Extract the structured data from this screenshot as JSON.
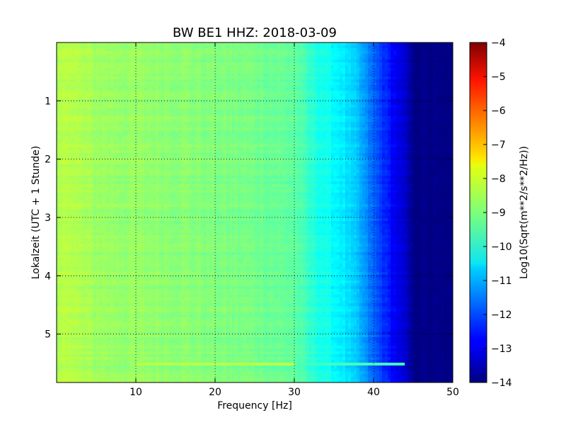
{
  "chart_data": {
    "type": "heatmap",
    "title": "BW BE1 HHZ: 2018-03-09",
    "xlabel": "Frequency [Hz]",
    "ylabel": "Lokalzeit (UTC + 1 Stunde)",
    "colorbar_label": "Log10(Sqrt(m**2/s**2/Hz))",
    "xlim": [
      0,
      50
    ],
    "ylim": [
      5.83,
      0
    ],
    "x_ticks": [
      10,
      20,
      30,
      40,
      50
    ],
    "y_ticks": [
      1,
      2,
      3,
      4,
      5
    ],
    "colorbar_ticks": [
      -4,
      -5,
      -6,
      -7,
      -8,
      -9,
      -10,
      -11,
      -12,
      -13,
      -14
    ],
    "clim": [
      -14,
      -4
    ],
    "colormap": "jet",
    "grid": true,
    "spectrum_profile": {
      "frequency_hz": [
        0.5,
        1,
        2,
        5,
        10,
        15,
        20,
        25,
        30,
        32,
        34,
        36,
        38,
        40,
        42,
        44,
        45,
        50
      ],
      "log10_amplitude": [
        -8.6,
        -8.3,
        -8.5,
        -8.7,
        -8.8,
        -8.85,
        -9.0,
        -9.1,
        -9.3,
        -9.8,
        -10.1,
        -10.4,
        -10.9,
        -11.8,
        -12.6,
        -13.3,
        -13.9,
        -14.0
      ]
    },
    "features": [
      {
        "time_h": 5.5,
        "freq_range_hz": [
          10,
          44
        ],
        "log10_amplitude": -8.4
      }
    ]
  }
}
